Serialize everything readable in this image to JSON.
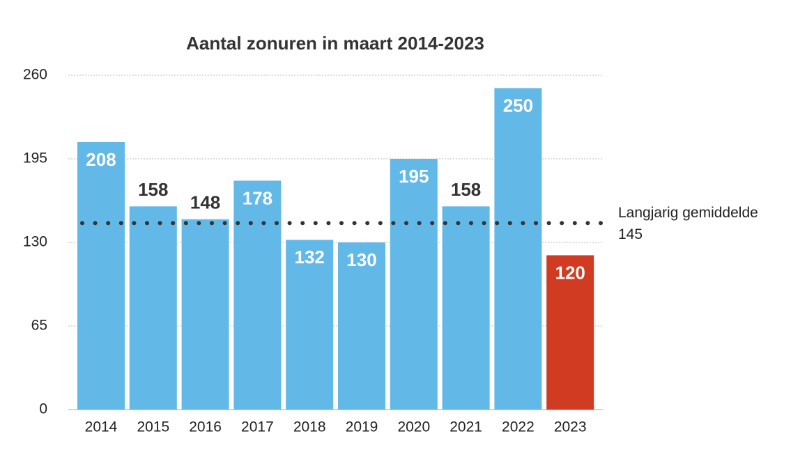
{
  "chart_data": {
    "type": "bar",
    "title": "Aantal zonuren in maart 2014-2023",
    "categories": [
      "2014",
      "2015",
      "2016",
      "2017",
      "2018",
      "2019",
      "2020",
      "2021",
      "2022",
      "2023"
    ],
    "values": [
      208,
      158,
      148,
      178,
      132,
      130,
      195,
      158,
      250,
      120
    ],
    "colors": [
      "#62b9e8",
      "#62b9e8",
      "#62b9e8",
      "#62b9e8",
      "#62b9e8",
      "#62b9e8",
      "#62b9e8",
      "#62b9e8",
      "#62b9e8",
      "#d13b22"
    ],
    "ylim": [
      0,
      260
    ],
    "yticks": [
      0,
      65,
      130,
      195,
      260
    ],
    "grid": true,
    "reference": {
      "label": "Langjarig gemiddelde",
      "value": 145
    }
  }
}
